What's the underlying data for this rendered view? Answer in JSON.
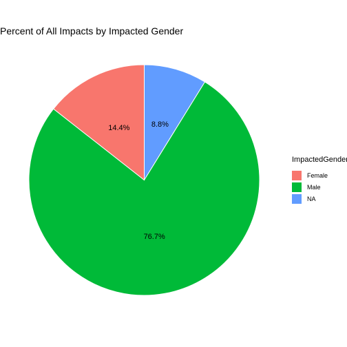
{
  "chart_data": {
    "type": "pie",
    "title": "Percent of All Impacts by Impacted Gender",
    "legend_title": "ImpactedGender",
    "legend_position": "right",
    "slices": [
      {
        "label": "Female",
        "value": 14.4,
        "display": "14.4%",
        "color": "#F8766D"
      },
      {
        "label": "Male",
        "value": 76.7,
        "display": "76.7%",
        "color": "#00BA38"
      },
      {
        "label": "NA",
        "value": 8.8,
        "display": "8.8%",
        "color": "#619CFF"
      }
    ],
    "plot_order": [
      "NA",
      "Male",
      "Female"
    ]
  }
}
